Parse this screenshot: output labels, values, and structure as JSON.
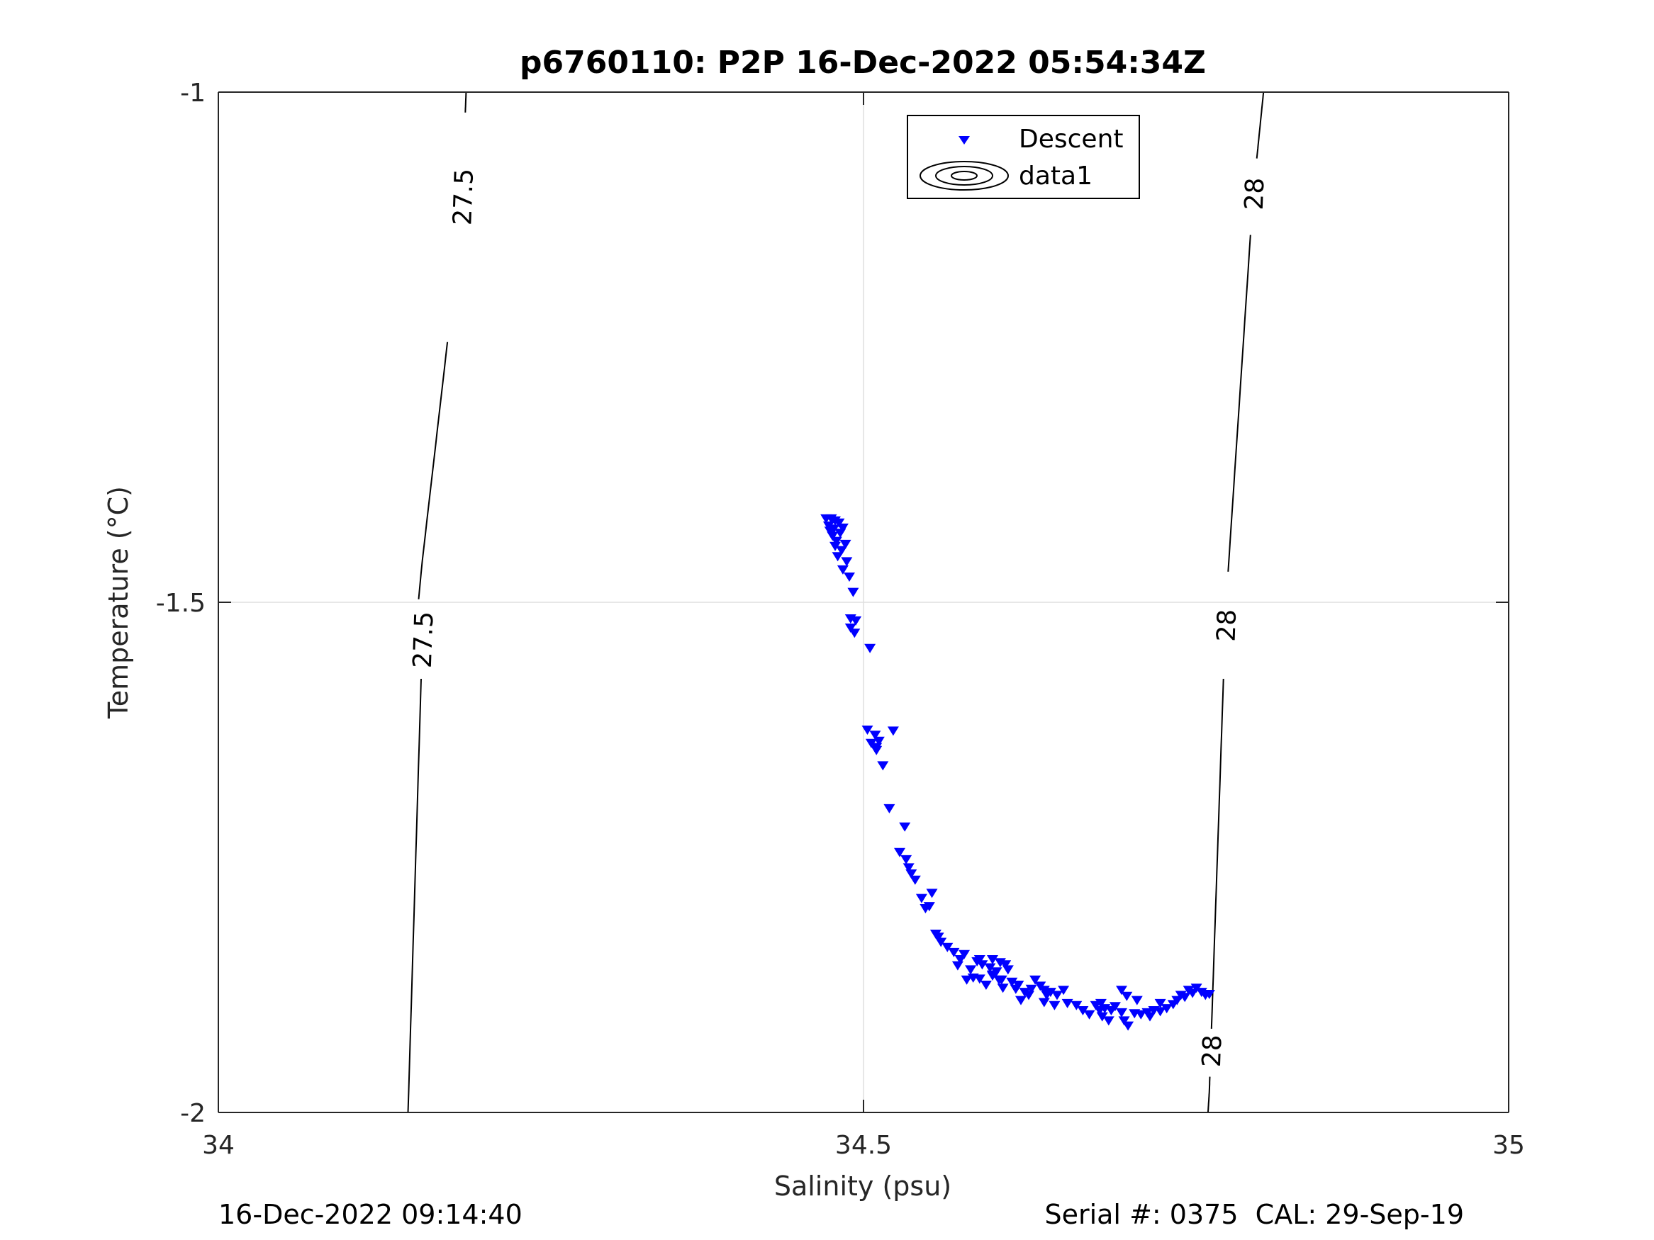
{
  "chart_data": {
    "type": "scatter",
    "title": "p6760110: P2P 16-Dec-2022 05:54:34Z",
    "xlabel": "Salinity (psu)",
    "ylabel": "Temperature (°C)",
    "xlim": [
      34,
      35
    ],
    "ylim": [
      -2,
      -1
    ],
    "xticks": [
      34,
      34.5,
      35
    ],
    "xtick_labels": [
      "34",
      "34.5",
      "35"
    ],
    "yticks": [
      -2,
      -1.5,
      -1
    ],
    "ytick_labels": [
      "-2",
      "-1.5",
      "-1"
    ],
    "grid": true,
    "legend": {
      "placement": "top-center",
      "entries": [
        "Descent",
        "data1"
      ]
    },
    "colors": {
      "descent": "#0000ff",
      "contour": "#000000",
      "grid": "#dfdfdf",
      "axis": "#262626"
    },
    "contours": [
      {
        "level": "27.5",
        "points": [
          [
            34.192,
            -1.0
          ],
          [
            34.188,
            -1.13
          ],
          [
            34.155,
            -1.5
          ],
          [
            34.158,
            -1.46
          ],
          [
            34.158,
            -1.54
          ],
          [
            34.147,
            -2.0
          ]
        ],
        "labels": [
          "27.5",
          "27.5"
        ]
      },
      {
        "level": "28",
        "points": [
          [
            34.81,
            -1.0
          ],
          [
            34.802,
            -1.1
          ],
          [
            34.781,
            -1.5
          ],
          [
            34.768,
            -1.98
          ],
          [
            34.767,
            -2.0
          ]
        ],
        "labels": [
          "28",
          "28",
          "28"
        ]
      }
    ],
    "series": [
      {
        "name": "Descent",
        "marker": "triangle-down",
        "x": [
          34.471,
          34.475,
          34.478,
          34.473,
          34.477,
          34.481,
          34.474,
          34.476,
          34.479,
          34.482,
          34.484,
          34.478,
          34.483,
          34.486,
          34.48,
          34.487,
          34.484,
          34.489,
          34.492,
          34.49,
          34.494,
          34.49,
          34.493,
          34.505,
          34.503,
          34.509,
          34.512,
          34.506,
          34.51,
          34.515,
          34.523,
          34.51,
          34.52,
          34.532,
          34.528,
          34.533,
          34.535,
          34.537,
          34.54,
          34.545,
          34.551,
          34.548,
          34.553,
          34.556,
          34.558,
          34.56,
          34.565,
          34.57,
          34.575,
          34.573,
          34.578,
          34.583,
          34.585,
          34.58,
          34.588,
          34.59,
          34.592,
          34.598,
          34.6,
          34.603,
          34.606,
          34.61,
          34.6,
          34.605,
          34.595,
          34.59,
          34.6,
          34.607,
          34.608,
          34.612,
          34.615,
          34.62,
          34.618,
          34.625,
          34.628,
          34.622,
          34.63,
          34.633,
          34.637,
          34.64,
          34.642,
          34.645,
          34.64,
          34.65,
          34.648,
          34.655,
          34.658,
          34.665,
          34.67,
          34.675,
          34.68,
          34.683,
          34.685,
          34.69,
          34.684,
          34.687,
          34.692,
          34.695,
          34.7,
          34.702,
          34.705,
          34.71,
          34.7,
          34.704,
          34.712,
          34.715,
          34.72,
          34.722,
          34.725,
          34.73,
          34.735,
          34.73,
          34.74,
          34.743,
          34.746,
          34.749,
          34.752,
          34.755,
          34.758,
          34.762,
          34.765,
          34.768
        ],
        "y": [
          -1.418,
          -1.418,
          -1.42,
          -1.425,
          -1.428,
          -1.422,
          -1.43,
          -1.435,
          -1.44,
          -1.432,
          -1.427,
          -1.445,
          -1.449,
          -1.443,
          -1.455,
          -1.46,
          -1.468,
          -1.475,
          -1.49,
          -1.516,
          -1.518,
          -1.525,
          -1.53,
          -1.545,
          -1.625,
          -1.63,
          -1.636,
          -1.638,
          -1.645,
          -1.66,
          -1.626,
          -1.642,
          -1.702,
          -1.72,
          -1.745,
          -1.752,
          -1.76,
          -1.766,
          -1.772,
          -1.79,
          -1.798,
          -1.8,
          -1.785,
          -1.825,
          -1.828,
          -1.833,
          -1.838,
          -1.843,
          -1.85,
          -1.856,
          -1.845,
          -1.86,
          -1.868,
          -1.87,
          -1.852,
          -1.85,
          -1.855,
          -1.858,
          -1.85,
          -1.862,
          -1.853,
          -1.855,
          -1.865,
          -1.87,
          -1.875,
          -1.869,
          -1.866,
          -1.87,
          -1.878,
          -1.86,
          -1.872,
          -1.875,
          -1.879,
          -1.882,
          -1.885,
          -1.89,
          -1.879,
          -1.87,
          -1.876,
          -1.88,
          -1.885,
          -1.882,
          -1.892,
          -1.885,
          -1.895,
          -1.88,
          -1.893,
          -1.895,
          -1.9,
          -1.904,
          -1.895,
          -1.9,
          -1.906,
          -1.91,
          -1.893,
          -1.898,
          -1.9,
          -1.896,
          -1.902,
          -1.91,
          -1.915,
          -1.903,
          -1.88,
          -1.886,
          -1.89,
          -1.904,
          -1.902,
          -1.906,
          -1.9,
          -1.901,
          -1.898,
          -1.893,
          -1.894,
          -1.89,
          -1.885,
          -1.887,
          -1.88,
          -1.883,
          -1.878,
          -1.882,
          -1.885,
          -1.884
        ]
      }
    ]
  },
  "footer": {
    "timestamp": "16-Dec-2022 09:14:40",
    "serial_cal": "Serial #: 0375  CAL: 29-Sep-19"
  }
}
